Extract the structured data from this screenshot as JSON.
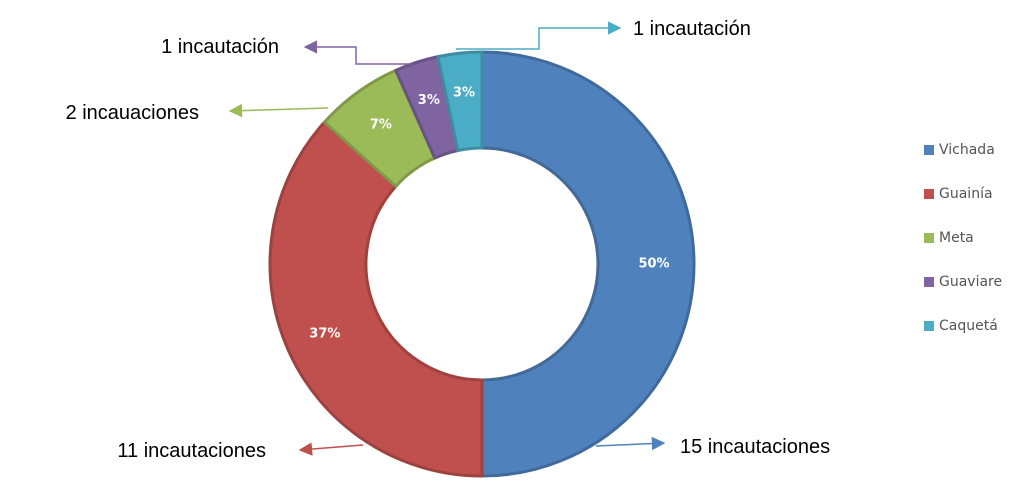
{
  "chart_data": {
    "type": "pie",
    "donut": true,
    "categories": [
      "Vichada",
      "Guainía",
      "Meta",
      "Guaviare",
      "Caquetá"
    ],
    "values": [
      15,
      11,
      2,
      1,
      1
    ],
    "percent_labels": [
      "50%",
      "37%",
      "7%",
      "3%",
      "3%"
    ],
    "callouts": [
      "15 incautaciones",
      "11 incautaciones",
      "2 incauaciones",
      "1 incautación",
      "1 incautación"
    ],
    "colors": [
      "#4F81BD",
      "#C0504D",
      "#9BBB59",
      "#8064A2",
      "#4BACC6"
    ],
    "legend_position": "right"
  }
}
